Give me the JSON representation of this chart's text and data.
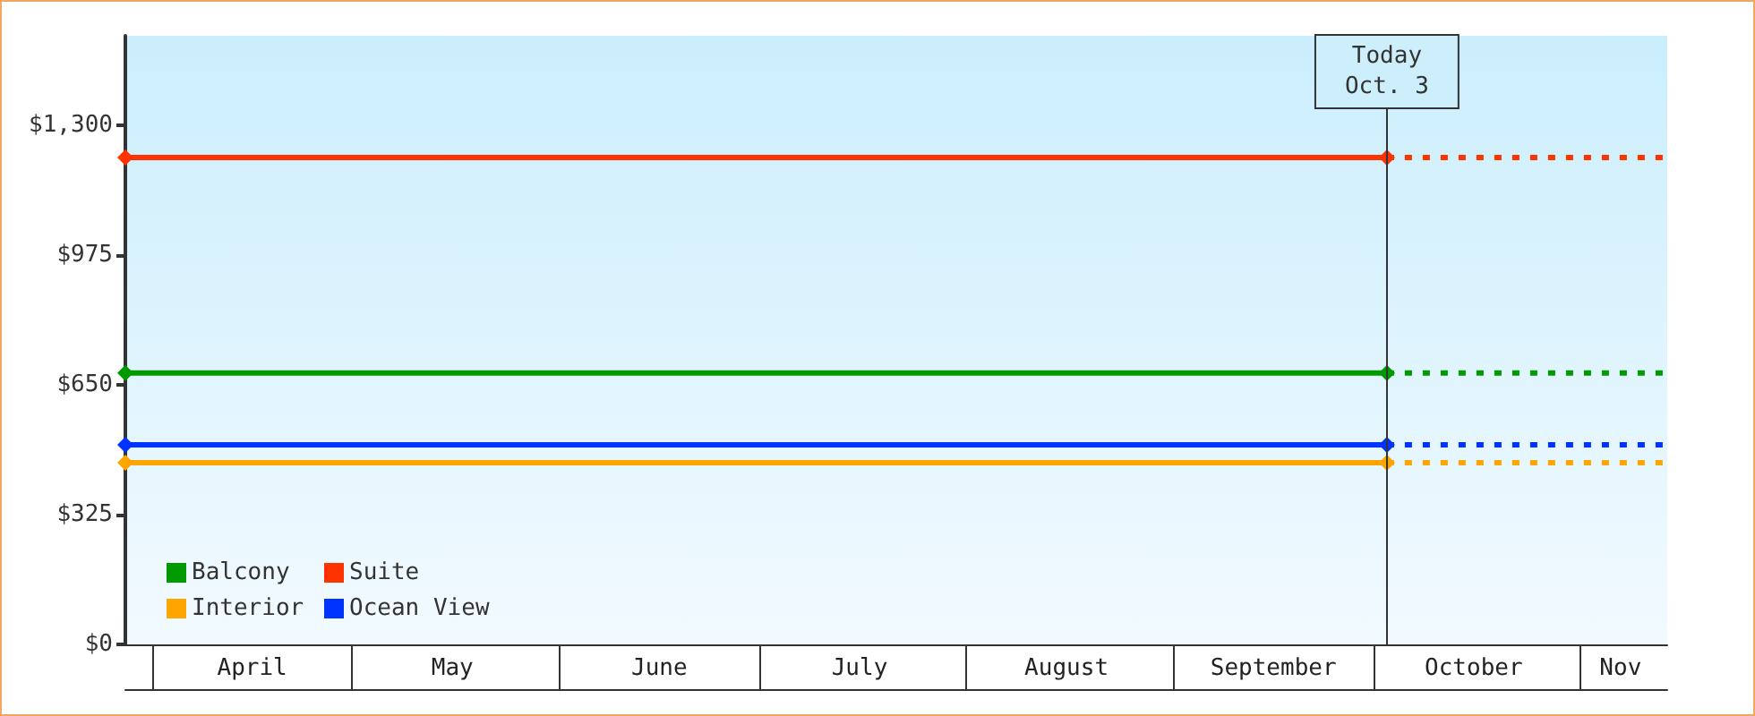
{
  "chart_data": {
    "type": "line",
    "xlim": [
      "--03-28",
      "--11-14"
    ],
    "xticks": [
      {
        "value": "--04-01",
        "label": null
      },
      {
        "value": "--04-16",
        "label": "April"
      },
      {
        "value": "--05-01",
        "label": null
      },
      {
        "value": "--05-16",
        "label": "May"
      },
      {
        "value": "--06-01",
        "label": null
      },
      {
        "value": "--06-16",
        "label": "June"
      },
      {
        "value": "--07-01",
        "label": null
      },
      {
        "value": "--07-16",
        "label": "July"
      },
      {
        "value": "--08-01",
        "label": null
      },
      {
        "value": "--08-16",
        "label": "August"
      },
      {
        "value": "--09-01",
        "label": null
      },
      {
        "value": "--09-16",
        "label": "September"
      },
      {
        "value": "--10-01",
        "label": null
      },
      {
        "value": "--10-16",
        "label": "October"
      },
      {
        "value": "--11-01",
        "label": null
      },
      {
        "value": "--11-07",
        "label": "Nov"
      }
    ],
    "ylim": [
      0,
      1525
    ],
    "yticks": [
      {
        "value": 0,
        "label": "$0"
      },
      {
        "value": 325,
        "label": "$325"
      },
      {
        "value": 650,
        "label": "$650"
      },
      {
        "value": 975,
        "label": "$975"
      },
      {
        "value": 1300,
        "label": "$1,300"
      }
    ],
    "series": [
      {
        "name": "Balcony",
        "color": "#009900",
        "x": [
          "--03-28",
          "--10-03"
        ],
        "values": [
          680,
          680
        ]
      },
      {
        "name": "Suite",
        "color": "#ff3300",
        "x": [
          "--03-28",
          "--10-03"
        ],
        "values": [
          1220,
          1220
        ]
      },
      {
        "name": "Interior",
        "color": "#ffa500",
        "x": [
          "--03-28",
          "--10-03"
        ],
        "values": [
          455,
          455
        ]
      },
      {
        "name": "Ocean View",
        "color": "#0033ff",
        "x": [
          "--03-28",
          "--10-03"
        ],
        "values": [
          500,
          500
        ]
      },
      {
        "color": "#009900",
        "x": [
          "--10-03",
          "--11-14"
        ],
        "values": [
          680,
          680
        ],
        "line_style": "dashed",
        "marker": "none"
      },
      {
        "color": "#ff3300",
        "x": [
          "--10-03",
          "--11-14"
        ],
        "values": [
          1220,
          1220
        ],
        "line_style": "dashed",
        "marker": "none"
      },
      {
        "color": "#ffa500",
        "x": [
          "--10-03",
          "--11-14"
        ],
        "values": [
          455,
          455
        ],
        "line_style": "dashed",
        "marker": "none"
      },
      {
        "color": "#0033ff",
        "x": [
          "--10-03",
          "--11-14"
        ],
        "values": [
          500,
          500
        ],
        "line_style": "dashed",
        "marker": "none"
      }
    ],
    "ref_lines": [
      {
        "axis": "x",
        "value": "--10-03",
        "label": "Today\nOct. 3",
        "color": "#333333"
      }
    ],
    "legend": "bottom left",
    "marker": "diamond",
    "line_style": "solid"
  }
}
